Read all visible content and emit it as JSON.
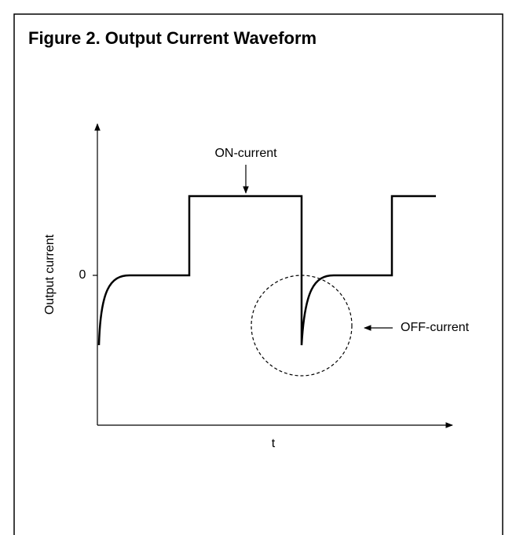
{
  "title": "Figure 2. Output Current Waveform",
  "labels": {
    "y_axis": "Output current",
    "zero": "0",
    "x_axis": "t",
    "on_current": "ON-current",
    "off_current": "OFF-current"
  }
}
